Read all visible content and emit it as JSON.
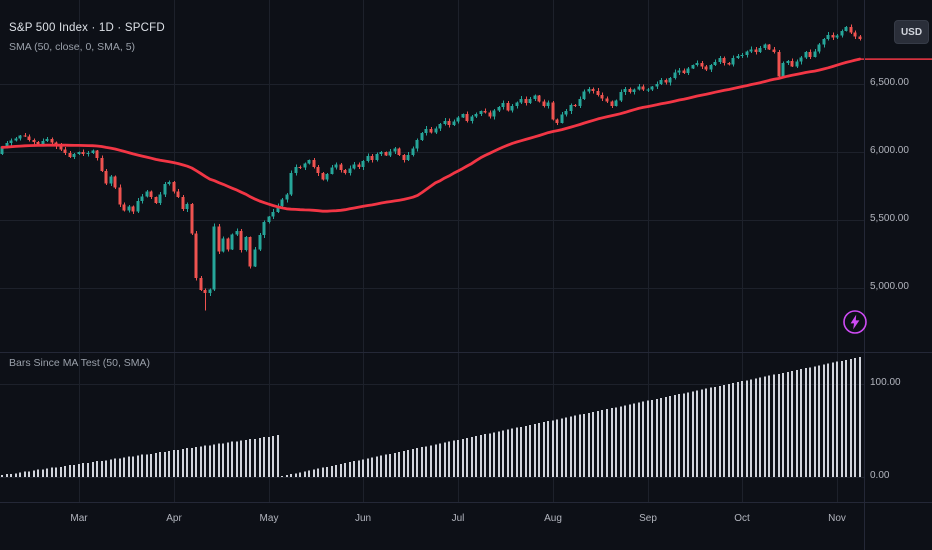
{
  "header": {
    "symbol_line": "S&P 500 Index · 1D · SPCFD",
    "indicator_line": "SMA (50, close, 0, SMA, 5)"
  },
  "currency_button": {
    "label": "USD"
  },
  "lower_panel": {
    "title": "Bars Since MA Test (50, SMA)"
  },
  "colors": {
    "background": "#0d1017",
    "grid": "#1d212b",
    "up": "#26a69a",
    "down": "#ef5350",
    "sma": "#f23645",
    "histogram": "#d1d4dc",
    "axis_text": "#b2b5be",
    "divider": "#242837",
    "flash_icon": "#cf4bf5",
    "button_bg": "#2a2e39"
  },
  "chart_data": [
    {
      "type": "candlestick",
      "title": "S&P 500 Index",
      "timeframe": "1D",
      "symbol": "SPCFD",
      "currency": "USD",
      "ylim": [
        4590,
        6985
      ],
      "y_ticks": [
        {
          "value": 6500,
          "label": "6,500.00"
        },
        {
          "value": 6000,
          "label": "6,000.00"
        },
        {
          "value": 5500,
          "label": "5,500.00"
        },
        {
          "value": 5000,
          "label": "5,000.00"
        }
      ],
      "x_months": [
        {
          "label": "Mar",
          "index": 17
        },
        {
          "label": "Apr",
          "index": 38
        },
        {
          "label": "May",
          "index": 59
        },
        {
          "label": "Jun",
          "index": 80
        },
        {
          "label": "Jul",
          "index": 101
        },
        {
          "label": "Aug",
          "index": 122
        },
        {
          "label": "Sep",
          "index": 143
        },
        {
          "label": "Oct",
          "index": 164
        },
        {
          "label": "Nov",
          "index": 185
        }
      ],
      "closes": [
        6040,
        6065,
        6085,
        6100,
        6120,
        6115,
        6090,
        6075,
        6060,
        6080,
        6095,
        6070,
        6045,
        6020,
        5995,
        5965,
        5985,
        6000,
        5985,
        5995,
        6010,
        5955,
        5860,
        5770,
        5820,
        5740,
        5615,
        5570,
        5600,
        5565,
        5640,
        5675,
        5710,
        5670,
        5625,
        5690,
        5765,
        5780,
        5710,
        5670,
        5580,
        5620,
        5400,
        5075,
        4985,
        4965,
        4990,
        5455,
        5270,
        5365,
        5285,
        5395,
        5420,
        5280,
        5375,
        5160,
        5285,
        5390,
        5485,
        5525,
        5560,
        5605,
        5650,
        5690,
        5845,
        5890,
        5885,
        5915,
        5940,
        5890,
        5845,
        5800,
        5840,
        5885,
        5910,
        5870,
        5845,
        5880,
        5910,
        5890,
        5935,
        5970,
        5940,
        5985,
        6000,
        5975,
        6005,
        6025,
        5980,
        5940,
        5980,
        6025,
        6090,
        6140,
        6170,
        6145,
        6175,
        6205,
        6230,
        6200,
        6225,
        6255,
        6280,
        6230,
        6260,
        6280,
        6300,
        6290,
        6260,
        6305,
        6330,
        6360,
        6305,
        6340,
        6365,
        6390,
        6360,
        6390,
        6415,
        6370,
        6340,
        6365,
        6240,
        6215,
        6275,
        6300,
        6345,
        6340,
        6390,
        6445,
        6465,
        6450,
        6420,
        6395,
        6370,
        6340,
        6380,
        6440,
        6465,
        6440,
        6460,
        6480,
        6460,
        6460,
        6480,
        6500,
        6530,
        6510,
        6545,
        6585,
        6600,
        6580,
        6615,
        6640,
        6655,
        6630,
        6605,
        6640,
        6660,
        6690,
        6655,
        6645,
        6690,
        6705,
        6715,
        6740,
        6755,
        6735,
        6765,
        6790,
        6755,
        6735,
        6555,
        6655,
        6670,
        6630,
        6665,
        6695,
        6735,
        6700,
        6740,
        6790,
        6830,
        6860,
        6840,
        6855,
        6890,
        6920,
        6880,
        6850,
        6830
      ],
      "pre_window_closes": [
        5985,
        5970,
        5960,
        5978,
        5995,
        6010,
        6025,
        6040,
        6032,
        6048,
        6060,
        6052,
        6040,
        6028,
        6015,
        6000,
        5990,
        6005,
        6020,
        6035,
        6048,
        6060,
        6072,
        6085,
        6075,
        6062,
        6050,
        6038,
        6025,
        6040,
        6055,
        6068,
        6080,
        6070,
        6058,
        6045,
        6032,
        6020,
        6035,
        6050,
        6062,
        6075,
        6068,
        6055,
        6042,
        6030,
        6018,
        6005,
        5995,
        5985
      ],
      "low_override": {
        "index": 45,
        "low": 4835
      }
    },
    {
      "type": "line",
      "title": "SMA (50, close, 0, SMA, 5)",
      "window": 50,
      "derived_from": "closes"
    },
    {
      "type": "bar",
      "title": "Bars Since MA Test (50, SMA)",
      "ylim": [
        0,
        135
      ],
      "y_ticks": [
        {
          "value": 100,
          "label": "100.00"
        },
        {
          "value": 0,
          "label": "0.00"
        }
      ],
      "values": [
        2,
        3,
        3,
        4,
        5,
        6,
        6,
        7,
        8,
        8,
        9,
        10,
        10,
        11,
        12,
        13,
        13,
        14,
        15,
        15,
        16,
        17,
        17,
        18,
        19,
        20,
        20,
        21,
        22,
        22,
        23,
        24,
        24,
        25,
        26,
        27,
        27,
        28,
        29,
        29,
        30,
        31,
        31,
        32,
        33,
        34,
        34,
        35,
        36,
        36,
        37,
        38,
        38,
        39,
        40,
        41,
        41,
        42,
        43,
        43,
        44,
        45,
        1,
        2,
        3,
        4,
        5,
        6,
        7,
        8,
        9,
        10,
        11,
        12,
        13,
        14,
        15,
        16,
        17,
        18,
        19,
        20,
        21,
        22,
        23,
        24,
        25,
        26,
        27,
        28,
        29,
        30,
        31,
        32,
        33,
        34,
        35,
        36,
        37,
        38,
        39,
        40,
        41,
        42,
        43,
        44,
        45,
        46,
        47,
        48,
        49,
        50,
        51,
        52,
        53,
        54,
        55,
        56,
        57,
        58,
        59,
        60,
        61,
        62,
        63,
        64,
        65,
        66,
        67,
        68,
        69,
        70,
        71,
        72,
        73,
        74,
        75,
        76,
        77,
        78,
        79,
        80,
        81,
        82,
        83,
        84,
        85,
        86,
        87,
        88,
        89,
        90,
        91,
        92,
        93,
        94,
        95,
        96,
        97,
        98,
        99,
        100,
        101,
        102,
        103,
        104,
        105,
        106,
        107,
        108,
        109,
        110,
        111,
        112,
        113,
        114,
        115,
        116,
        117,
        118,
        119,
        120,
        121,
        122,
        123,
        124,
        125,
        126,
        127,
        128,
        129
      ]
    }
  ]
}
